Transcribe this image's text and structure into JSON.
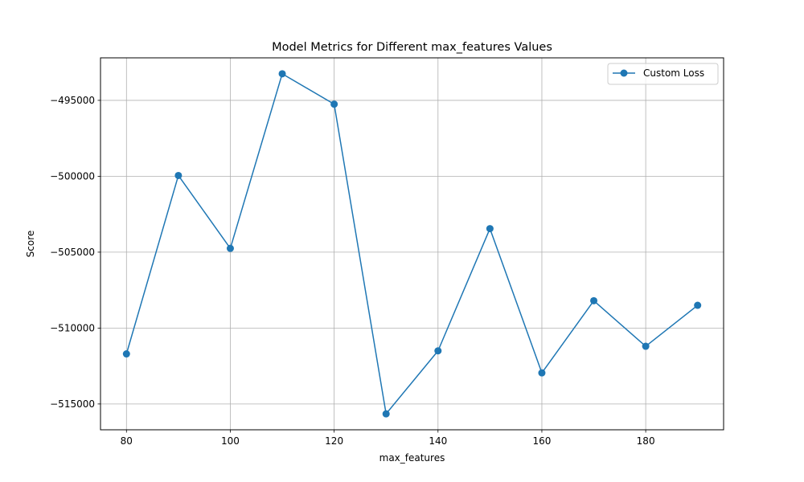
{
  "chart_data": {
    "type": "line",
    "title": "Model Metrics for Different max_features Values",
    "xlabel": "max_features",
    "ylabel": "Score",
    "xlim": [
      75,
      195
    ],
    "ylim": [
      -516700,
      -492200
    ],
    "x_ticks": [
      80,
      100,
      120,
      140,
      160,
      180
    ],
    "x_tick_labels": [
      "80",
      "100",
      "120",
      "140",
      "160",
      "180"
    ],
    "y_ticks": [
      -515000,
      -510000,
      -505000,
      -500000,
      -495000
    ],
    "y_tick_labels": [
      "−515000",
      "−510000",
      "−505000",
      "−500000",
      "−495000"
    ],
    "grid": true,
    "legend_position": "top-right",
    "series": [
      {
        "name": "Custom Loss",
        "color": "#1f77b4",
        "marker": "circle",
        "x": [
          80,
          90,
          100,
          110,
          120,
          130,
          140,
          150,
          160,
          170,
          180,
          190
        ],
        "values": [
          -511700,
          -499950,
          -504750,
          -493250,
          -495250,
          -515650,
          -511500,
          -503450,
          -512950,
          -508200,
          -511200,
          -508500
        ]
      }
    ]
  }
}
